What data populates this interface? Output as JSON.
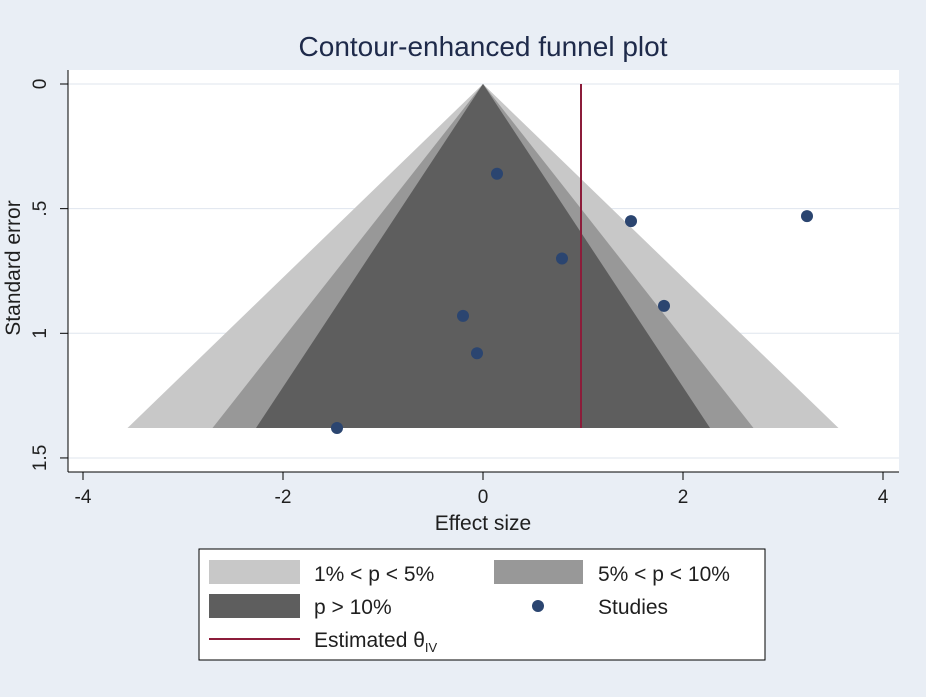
{
  "chart_data": {
    "type": "scatter",
    "title": "Contour-enhanced funnel plot",
    "xlabel": "Effect size",
    "ylabel": "Standard error",
    "xlim": [
      -4.2,
      4.2
    ],
    "ylim": [
      0,
      1.5
    ],
    "y_inverted": true,
    "x_ticks": [
      -4,
      -2,
      0,
      2,
      4
    ],
    "x_tick_labels": [
      "-4",
      "-2",
      "0",
      "2",
      "4"
    ],
    "y_ticks": [
      0,
      0.5,
      1,
      1.5
    ],
    "y_tick_labels": [
      "0",
      ".5",
      "1",
      "1.5"
    ],
    "grid": true,
    "contours": [
      {
        "name": "1% < p < 5%",
        "color": "#c8c8c8",
        "z": 2.576
      },
      {
        "name": "5% < p < 10%",
        "color": "#989898",
        "z": 1.96
      },
      {
        "name": "p > 10%",
        "color": "#5e5e5e",
        "z": 1.645
      }
    ],
    "contour_max_se": 1.38,
    "studies": {
      "name": "Studies",
      "color": "#2b4570",
      "points": [
        {
          "x": 0.14,
          "y": 0.36
        },
        {
          "x": 1.48,
          "y": 0.55
        },
        {
          "x": 3.24,
          "y": 0.53
        },
        {
          "x": 0.79,
          "y": 0.7
        },
        {
          "x": 1.81,
          "y": 0.89
        },
        {
          "x": -0.2,
          "y": 0.93
        },
        {
          "x": -0.06,
          "y": 1.08
        },
        {
          "x": -1.46,
          "y": 1.38
        }
      ]
    },
    "estimate": {
      "name": "Estimated θ",
      "subscript": "IV",
      "value": 0.98,
      "color": "#8c1c3a"
    },
    "legend_position": "bottom"
  }
}
